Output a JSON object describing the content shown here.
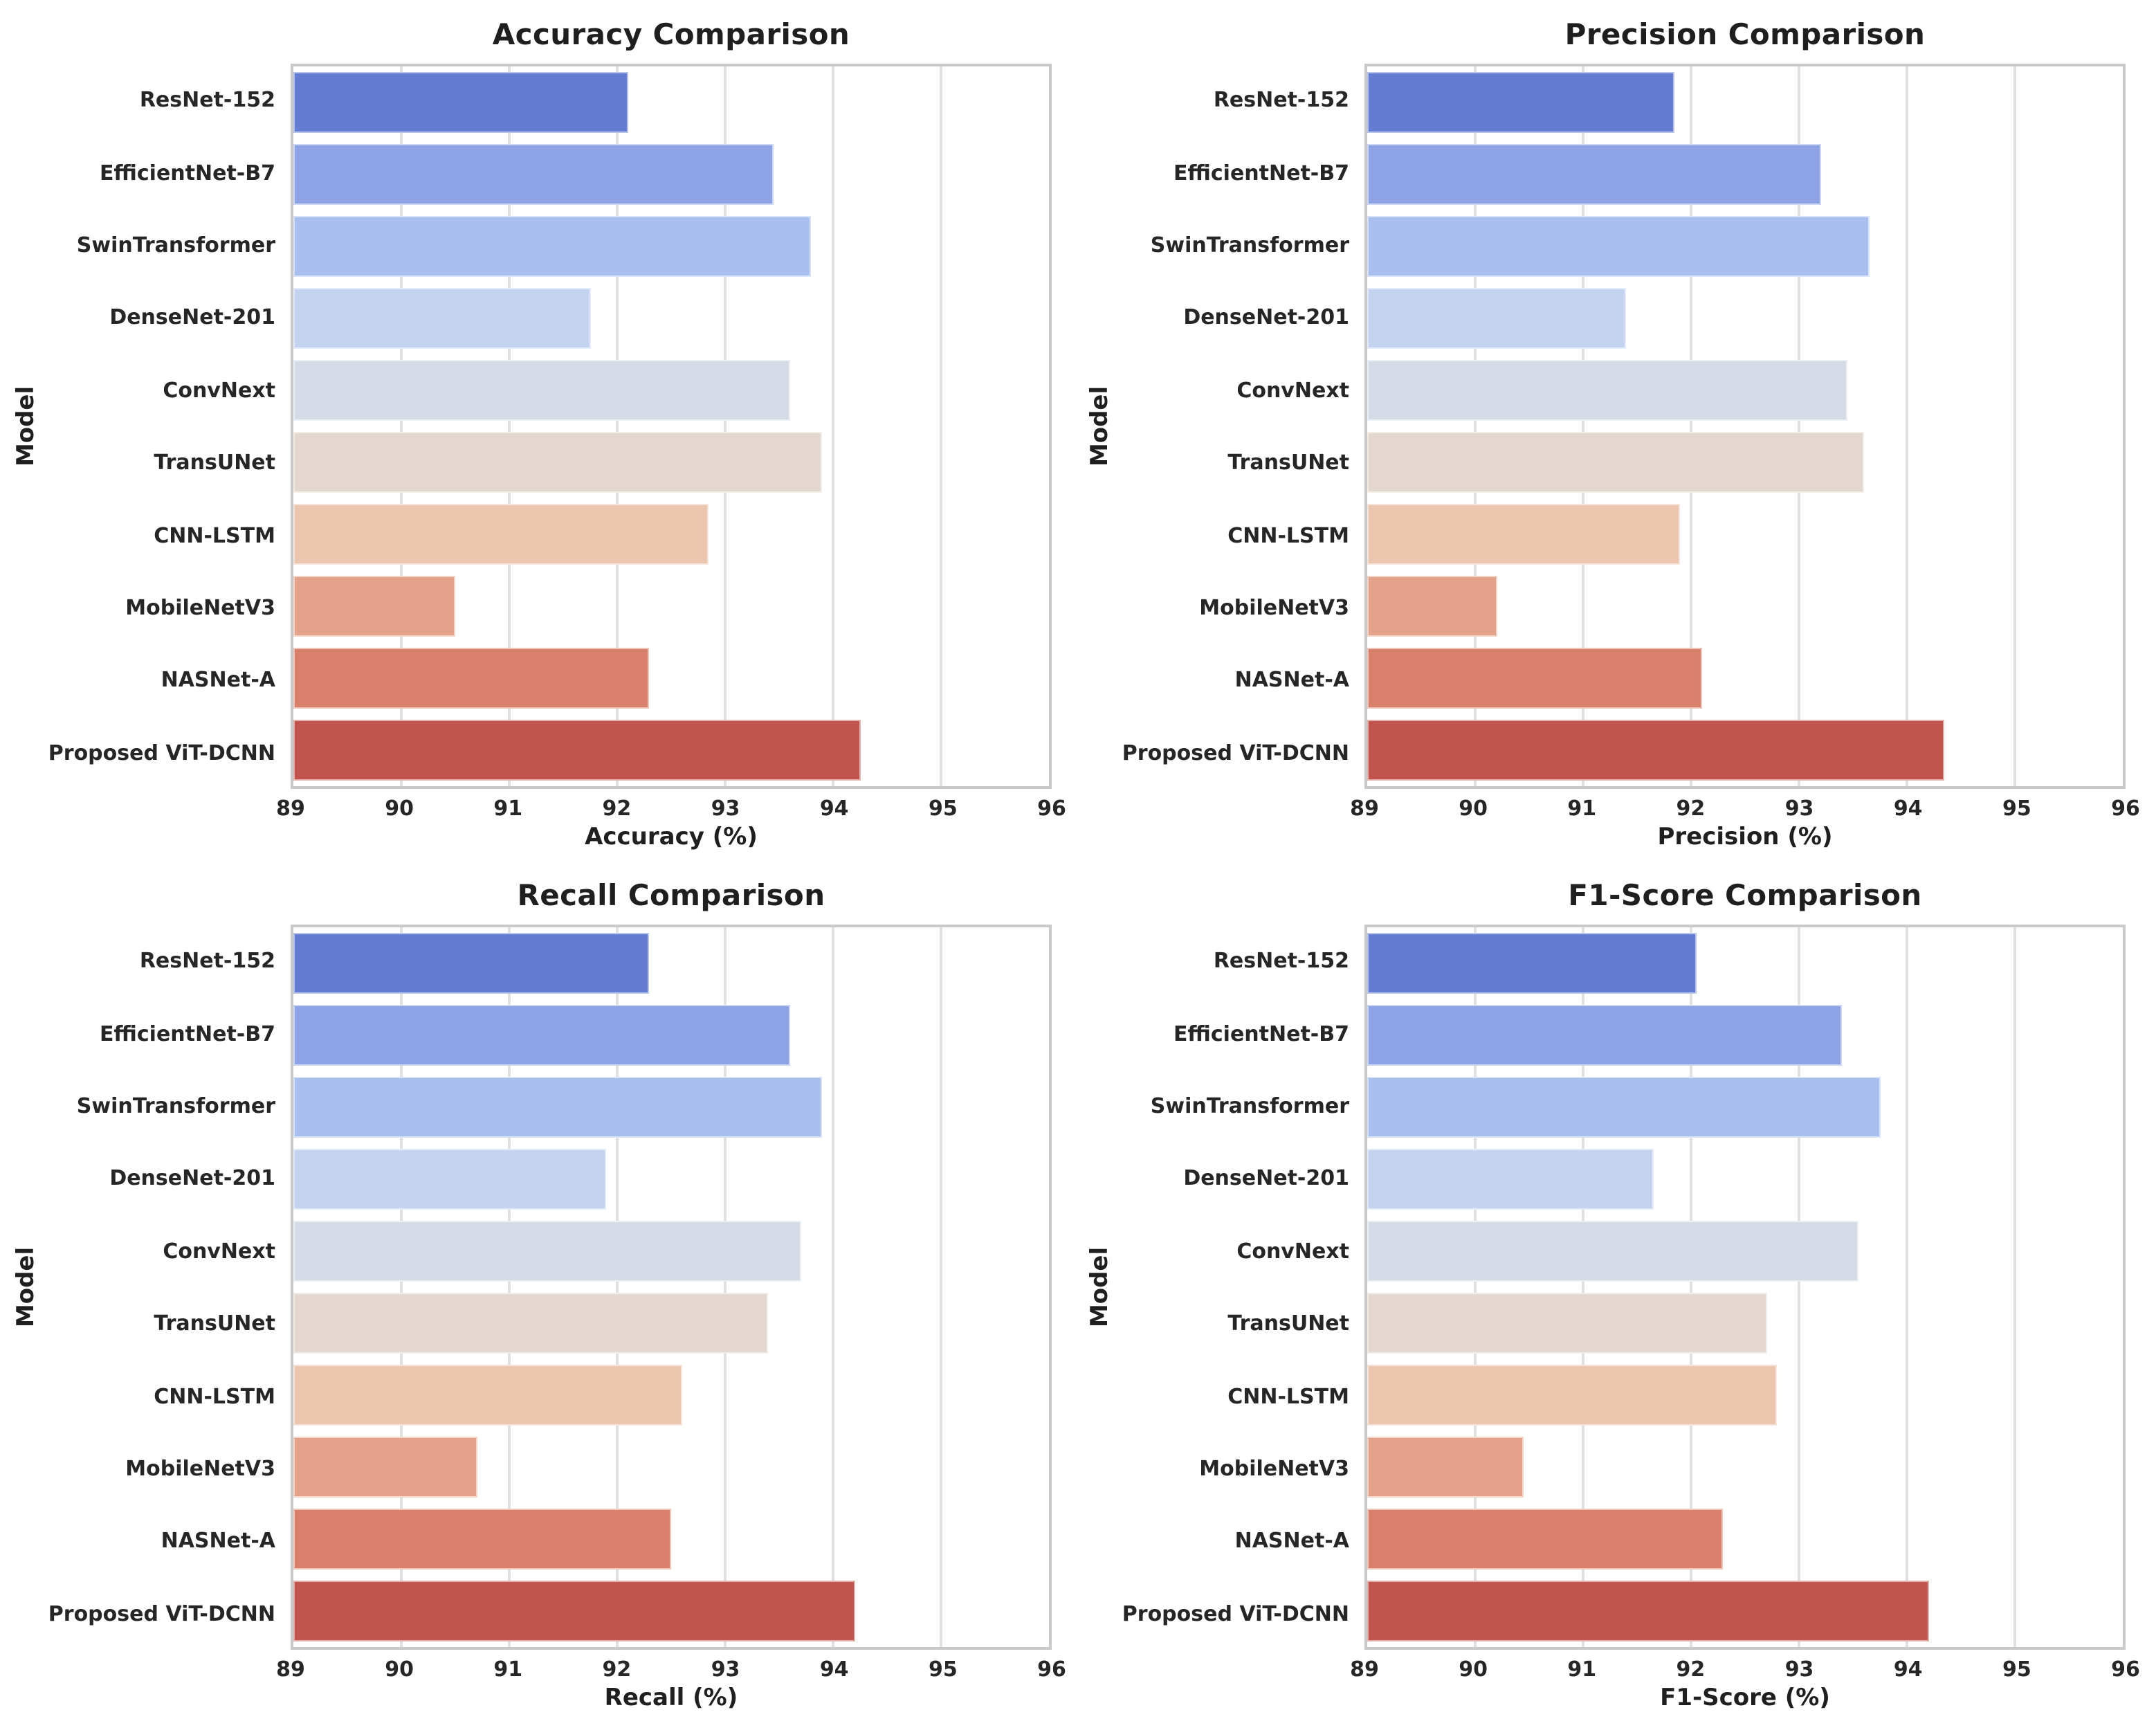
{
  "figure": {
    "background": "#ffffff",
    "text_color": "#1f1f1f",
    "spine_color": "#c9c9c9",
    "gridline_color": "#e0e0e0"
  },
  "models": [
    "ResNet-152",
    "EfficientNet-B7",
    "SwinTransformer",
    "DenseNet-201",
    "ConvNext",
    "TransUNet",
    "CNN-LSTM",
    "MobileNetV3",
    "NASNet-A",
    "Proposed ViT-DCNN"
  ],
  "bar_colors": [
    "#647dd3",
    "#8da3e6",
    "#a9bfef",
    "#c3d3f0",
    "#d5dbe6",
    "#e3d7cf",
    "#ebc5ae",
    "#e5a28a",
    "#d8806c",
    "#c1554e"
  ],
  "chart_data": [
    {
      "type": "bar",
      "orientation": "horizontal",
      "title": "Accuracy Comparison",
      "xlabel": "Accuracy (%)",
      "ylabel": "Model",
      "categories": [
        "ResNet-152",
        "EfficientNet-B7",
        "SwinTransformer",
        "DenseNet-201",
        "ConvNext",
        "TransUNet",
        "CNN-LSTM",
        "MobileNetV3",
        "NASNet-A",
        "Proposed ViT-DCNN"
      ],
      "values": [
        92.1,
        93.45,
        93.8,
        91.75,
        93.6,
        93.9,
        92.85,
        90.5,
        92.3,
        94.25
      ],
      "xlim": [
        89,
        96
      ],
      "xticks": [
        89,
        90,
        91,
        92,
        93,
        94,
        95,
        96
      ],
      "grid": true,
      "legend": false
    },
    {
      "type": "bar",
      "orientation": "horizontal",
      "title": "Precision Comparison",
      "xlabel": "Precision (%)",
      "ylabel": "Model",
      "categories": [
        "ResNet-152",
        "EfficientNet-B7",
        "SwinTransformer",
        "DenseNet-201",
        "ConvNext",
        "TransUNet",
        "CNN-LSTM",
        "MobileNetV3",
        "NASNet-A",
        "Proposed ViT-DCNN"
      ],
      "values": [
        91.85,
        93.2,
        93.65,
        91.4,
        93.45,
        93.6,
        91.9,
        90.2,
        92.1,
        94.35
      ],
      "xlim": [
        89,
        96
      ],
      "xticks": [
        89,
        90,
        91,
        92,
        93,
        94,
        95,
        96
      ],
      "grid": true,
      "legend": false
    },
    {
      "type": "bar",
      "orientation": "horizontal",
      "title": "Recall Comparison",
      "xlabel": "Recall (%)",
      "ylabel": "Model",
      "categories": [
        "ResNet-152",
        "EfficientNet-B7",
        "SwinTransformer",
        "DenseNet-201",
        "ConvNext",
        "TransUNet",
        "CNN-LSTM",
        "MobileNetV3",
        "NASNet-A",
        "Proposed ViT-DCNN"
      ],
      "values": [
        92.3,
        93.6,
        93.9,
        91.9,
        93.7,
        93.4,
        92.6,
        90.7,
        92.5,
        94.2
      ],
      "xlim": [
        89,
        96
      ],
      "xticks": [
        89,
        90,
        91,
        92,
        93,
        94,
        95,
        96
      ],
      "grid": true,
      "legend": false
    },
    {
      "type": "bar",
      "orientation": "horizontal",
      "title": "F1-Score Comparison",
      "xlabel": "F1-Score (%)",
      "ylabel": "Model",
      "categories": [
        "ResNet-152",
        "EfficientNet-B7",
        "SwinTransformer",
        "DenseNet-201",
        "ConvNext",
        "TransUNet",
        "CNN-LSTM",
        "MobileNetV3",
        "NASNet-A",
        "Proposed ViT-DCNN"
      ],
      "values": [
        92.05,
        93.4,
        93.75,
        91.65,
        93.55,
        92.7,
        92.8,
        90.45,
        92.3,
        94.2
      ],
      "xlim": [
        89,
        96
      ],
      "xticks": [
        89,
        90,
        91,
        92,
        93,
        94,
        95,
        96
      ],
      "grid": true,
      "legend": false
    }
  ]
}
